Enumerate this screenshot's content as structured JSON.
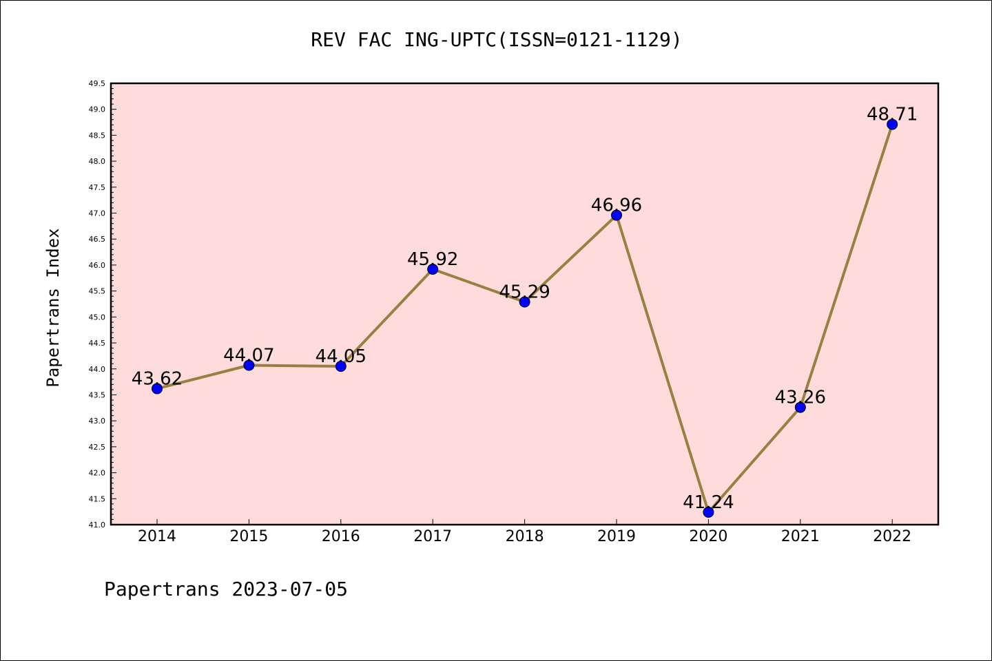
{
  "chart_data": {
    "type": "line",
    "title": "REV FAC ING-UPTC(ISSN=0121-1129)",
    "ylabel": "Papertrans Index",
    "xlabel": "",
    "footer": "Papertrans 2023-07-05",
    "x": [
      "2014",
      "2015",
      "2016",
      "2017",
      "2018",
      "2019",
      "2020",
      "2021",
      "2022"
    ],
    "series": [
      {
        "values": [
          43.62,
          44.07,
          44.05,
          45.92,
          45.29,
          46.96,
          41.24,
          43.26,
          48.71
        ],
        "data_labels": [
          "43.62",
          "44.07",
          "44.05",
          "45.92",
          "45.29",
          "46.96",
          "41.24",
          "43.26",
          "48.71"
        ]
      }
    ],
    "ylim": [
      41.0,
      49.5
    ],
    "y_ticks": [
      "41.0",
      "41.5",
      "42.0",
      "42.5",
      "43.0",
      "43.5",
      "44.0",
      "44.5",
      "45.0",
      "45.5",
      "46.0",
      "46.5",
      "47.0",
      "47.5",
      "48.0",
      "48.5",
      "49.0",
      "49.5"
    ],
    "grid": false,
    "colors": {
      "plot_background": "#ffdcdc",
      "line": "#9a8040",
      "marker": "#0000ff"
    }
  }
}
